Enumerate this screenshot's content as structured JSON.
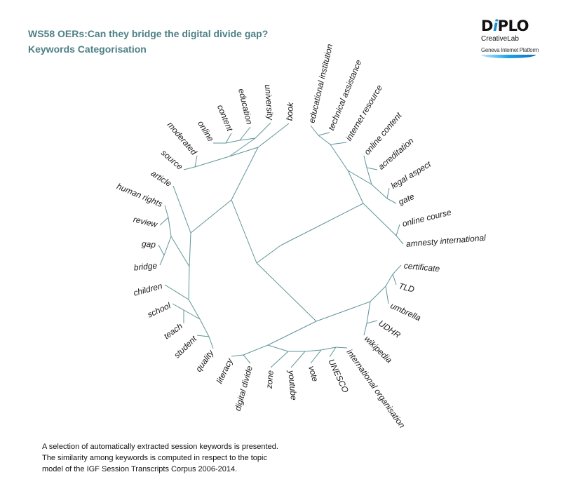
{
  "header": {
    "title": "WS58 OERs:Can they bridge the digital divide gap?",
    "subtitle": "Keywords Categorisation"
  },
  "logo": {
    "brand": "DiPLO",
    "line1": "CreativeLab",
    "line2": "Geneva Internet Platform"
  },
  "diagram": {
    "type": "radial dendrogram",
    "line_color": "#5f9499",
    "keywords": [
      "educational institution",
      "technical assistance",
      "internet resource",
      "online content",
      "acreditation",
      "legal aspect",
      "gate",
      "online course",
      "amnesty international",
      "certificate",
      "TLD",
      "umbrella",
      "UDHR",
      "wikipedia",
      "international organisation",
      "UNESCO",
      "vote",
      "youtube",
      "zone",
      "digital divide",
      "literacy",
      "quality",
      "student",
      "teach",
      "school",
      "children",
      "bridge",
      "gap",
      "review",
      "human rights",
      "article",
      "source",
      "moderated",
      "online",
      "content",
      "education",
      "university",
      "book"
    ]
  },
  "footer": {
    "lines": [
      "A selection of automatically extracted session keywords is presented.",
      "The similarity among keywords is computed in respect to the topic",
      "model of the IGF Session Transcripts Corpus 2006-2014."
    ]
  }
}
